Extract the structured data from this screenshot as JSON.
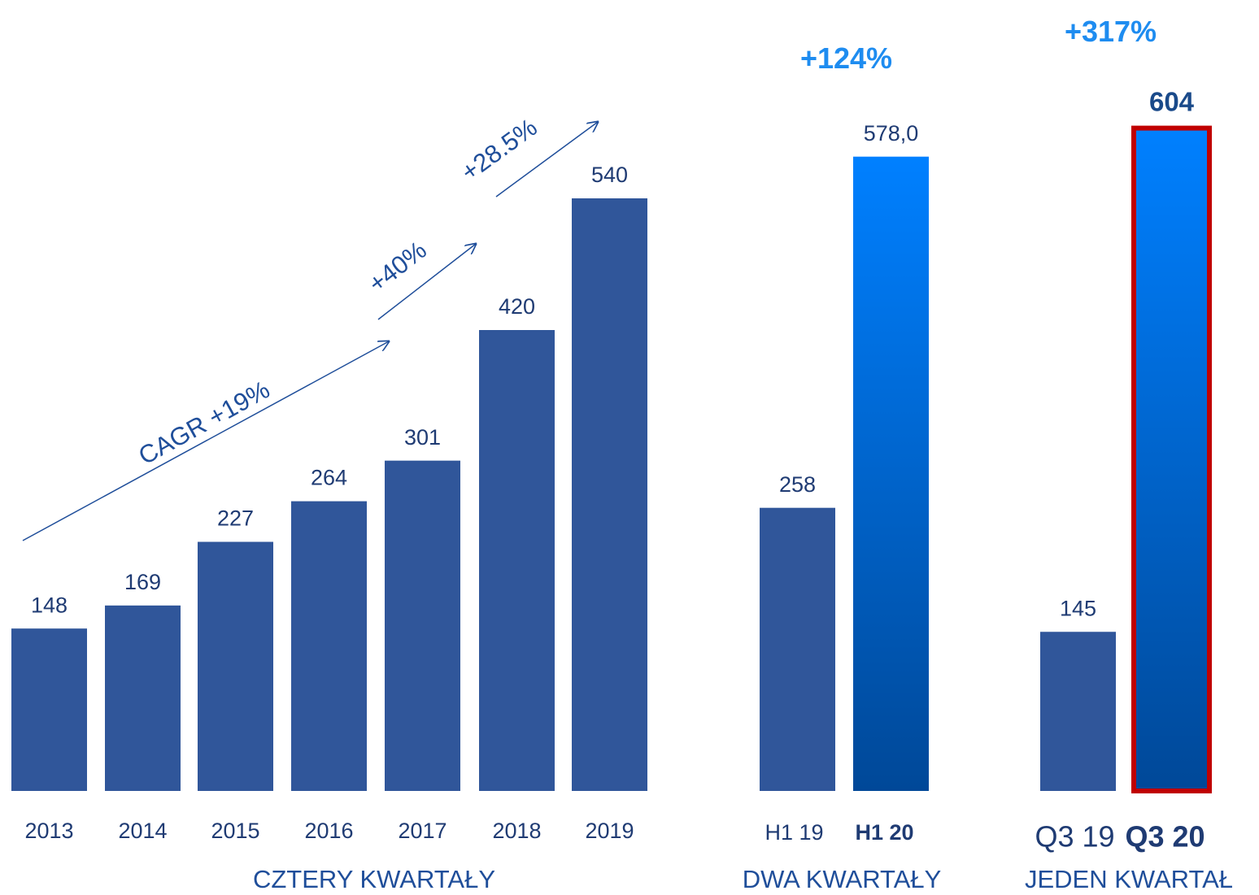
{
  "chart_data": {
    "type": "bar",
    "ylim": [
      0,
      720
    ],
    "bar_color": "#30569a",
    "highlight_gradient": [
      "#0080ff",
      "#004898"
    ],
    "highlight_border": "#c00000",
    "groups": [
      {
        "label": "CZTERY KWARTAŁY",
        "categories": [
          "2013",
          "2014",
          "2015",
          "2016",
          "2017",
          "2018",
          "2019"
        ],
        "values": [
          148,
          169,
          227,
          264,
          301,
          420,
          540
        ]
      },
      {
        "label": "DWA KWARTAŁY",
        "categories": [
          "H1 19",
          "H1 20"
        ],
        "values": [
          258,
          578
        ],
        "value_labels": [
          "258",
          "578,0"
        ],
        "highlight_index": 1,
        "growth": "+124%"
      },
      {
        "label": "JEDEN KWARTAŁ",
        "categories": [
          "Q3 19",
          "Q3 20"
        ],
        "values": [
          145,
          604
        ],
        "highlight_index": 1,
        "growth": "+317%"
      }
    ],
    "annotations": [
      "CAGR +19%",
      "+40%",
      "+28.5%"
    ]
  }
}
